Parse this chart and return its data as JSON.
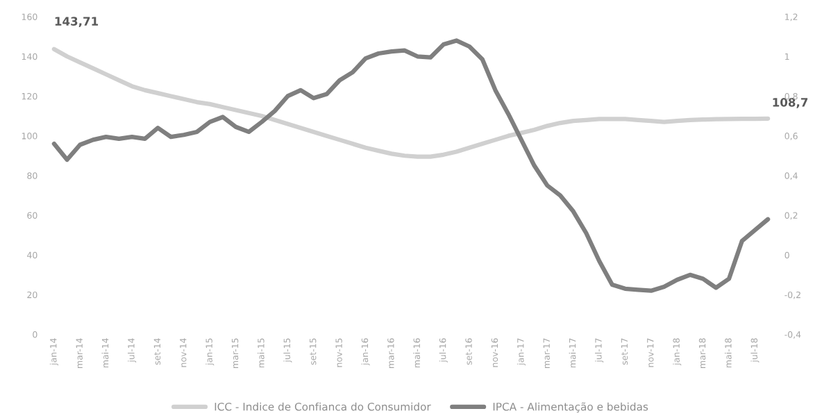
{
  "chart_data": {
    "type": "line",
    "categories": [
      "jan-14",
      null,
      "mar-14",
      null,
      "mai-14",
      null,
      "jul-14",
      null,
      "set-14",
      null,
      "nov-14",
      null,
      "jan-15",
      null,
      "mar-15",
      null,
      "mai-15",
      null,
      "jul-15",
      null,
      "set-15",
      null,
      "nov-15",
      null,
      "jan-16",
      null,
      "mar-16",
      null,
      "mai-16",
      null,
      "jul-16",
      null,
      "set-16",
      null,
      "nov-16",
      null,
      "jan-17",
      null,
      "mar-17",
      null,
      "mai-17",
      null,
      "jul-17",
      null,
      "set-17",
      null,
      "nov-17",
      null,
      "jan-18",
      null,
      "mar-18",
      null,
      "mai-18",
      null,
      "jul-18",
      null
    ],
    "series": [
      {
        "name": "ICC - Indice de Confianca do Consumidor",
        "color": "#d0d0d0",
        "values": [
          143.71,
          140,
          137,
          134,
          131,
          128,
          125,
          123,
          121.5,
          120,
          118.5,
          117,
          116,
          114.5,
          113,
          111.5,
          110,
          108,
          106,
          104,
          102,
          100,
          98,
          96,
          94,
          92.5,
          91,
          90,
          89.5,
          89.5,
          90.5,
          92,
          94,
          96,
          98,
          100,
          101.5,
          103,
          105,
          106.5,
          107.5,
          108,
          108.5,
          108.5,
          108.5,
          108,
          107.5,
          107,
          107.5,
          108,
          108.2,
          108.4,
          108.5,
          108.6,
          108.6,
          108.7
        ],
        "value_labels": [
          "143,71",
          null,
          null,
          null,
          null,
          null,
          null,
          null,
          null,
          null,
          null,
          null,
          null,
          null,
          null,
          null,
          null,
          null,
          null,
          null,
          null,
          null,
          null,
          null,
          null,
          null,
          null,
          null,
          null,
          null,
          null,
          null,
          null,
          null,
          null,
          null,
          null,
          null,
          null,
          null,
          null,
          null,
          null,
          null,
          null,
          null,
          null,
          null,
          null,
          null,
          null,
          null,
          null,
          null,
          null,
          "108,7"
        ]
      },
      {
        "name": "IPCA - Alimentação e bebidas",
        "color": "#7f7f7f",
        "axis": "y2",
        "values": [
          0.56,
          0.48,
          0.555,
          0.58,
          0.595,
          0.585,
          0.595,
          0.585,
          0.64,
          0.595,
          0.605,
          0.62,
          0.67,
          0.695,
          0.645,
          0.62,
          0.67,
          0.725,
          0.8,
          0.83,
          0.79,
          0.81,
          0.88,
          0.92,
          0.99,
          1.015,
          1.025,
          1.03,
          1.0,
          0.995,
          1.06,
          1.08,
          1.05,
          0.985,
          0.83,
          0.71,
          0.58,
          0.45,
          0.35,
          0.3,
          0.22,
          0.11,
          -0.03,
          -0.15,
          -0.17,
          -0.175,
          -0.18,
          -0.16,
          -0.125,
          -0.1,
          -0.12,
          -0.165,
          -0.12,
          0.07,
          0.125,
          0.18
        ]
      }
    ],
    "ylim": [
      0,
      160
    ],
    "yticks": [
      0,
      20,
      40,
      60,
      80,
      100,
      120,
      140,
      160
    ],
    "y2lim": [
      -0.4,
      1.2
    ],
    "y2ticks": [
      {
        "value": -0.4,
        "label": "-0,4"
      },
      {
        "value": -0.2,
        "label": "-0,2"
      },
      0,
      {
        "value": 0.2,
        "label": "0,2"
      },
      {
        "value": 0.4,
        "label": "0,4"
      },
      {
        "value": 0.6,
        "label": "0,6"
      },
      {
        "value": 0.8,
        "label": "0,8"
      },
      1,
      {
        "value": 1.2,
        "label": "1,2"
      }
    ],
    "legend": "bottom",
    "grid": false
  }
}
